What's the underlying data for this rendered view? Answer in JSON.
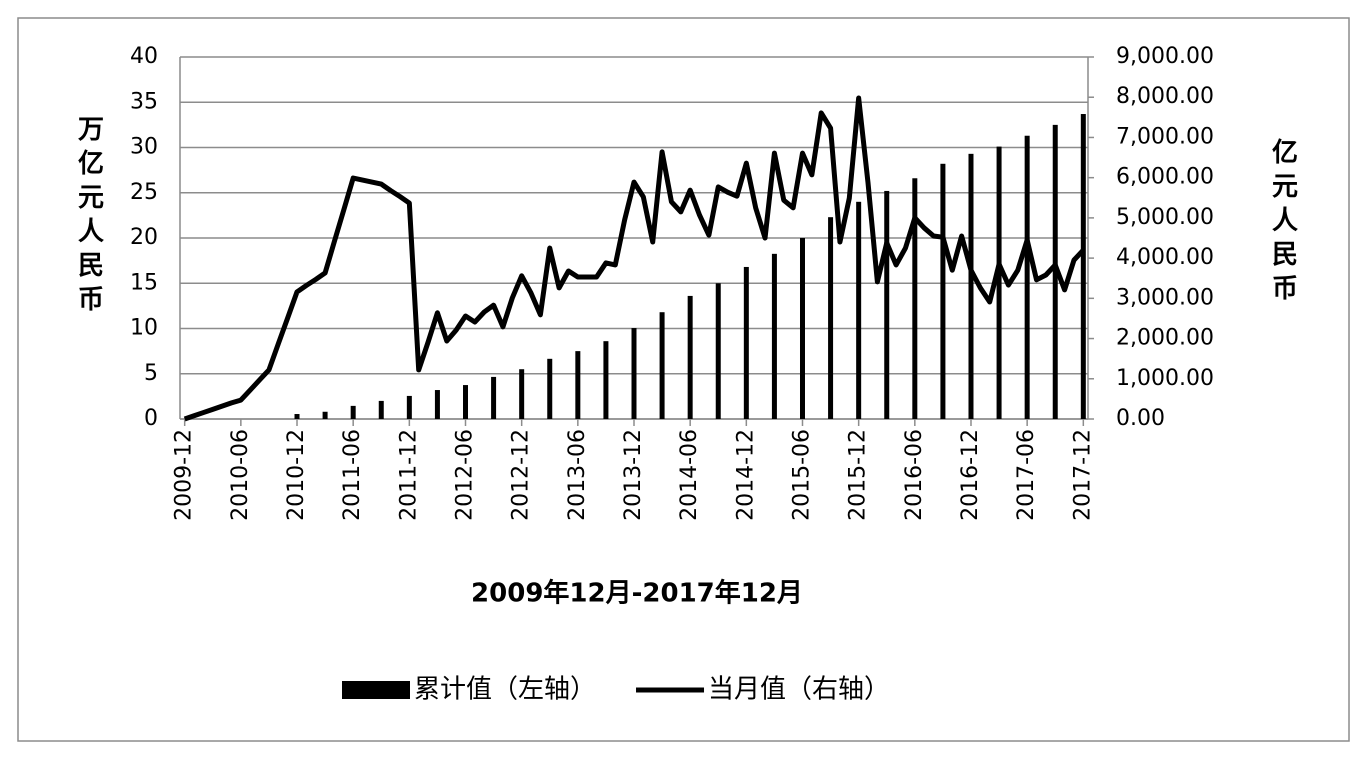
{
  "chart_data": {
    "type": "bar-line",
    "xlabel": "2009年12月-2017年12月",
    "ylabel": "万亿元人民币",
    "y2label": "亿元人民币",
    "categories": [
      "2009-12",
      null,
      null,
      null,
      null,
      null,
      "2010-06",
      null,
      null,
      null,
      null,
      null,
      "2010-12",
      null,
      null,
      null,
      null,
      null,
      "2011-06",
      null,
      null,
      null,
      null,
      null,
      "2011-12",
      null,
      null,
      null,
      null,
      null,
      "2012-06",
      null,
      null,
      null,
      null,
      null,
      "2012-12",
      null,
      null,
      null,
      null,
      null,
      "2013-06",
      null,
      null,
      null,
      null,
      null,
      "2013-12",
      null,
      null,
      null,
      null,
      null,
      "2014-06",
      null,
      null,
      null,
      null,
      null,
      "2014-12",
      null,
      null,
      null,
      null,
      null,
      "2015-06",
      null,
      null,
      null,
      null,
      null,
      "2015-12",
      null,
      null,
      null,
      null,
      null,
      "2016-06",
      null,
      null,
      null,
      null,
      null,
      "2016-12",
      null,
      null,
      null,
      null,
      null,
      "2017-06",
      null,
      null,
      null,
      null,
      null,
      "2017-12"
    ],
    "series": [
      {
        "name": "累计值（左轴）",
        "type": "bar",
        "color": "#000000",
        "values": [
          null,
          null,
          null,
          null,
          null,
          null,
          null,
          null,
          null,
          null,
          null,
          null,
          0.55,
          null,
          null,
          0.8,
          null,
          null,
          1.45,
          null,
          null,
          2.0,
          null,
          null,
          2.55,
          null,
          null,
          3.2,
          null,
          null,
          3.75,
          null,
          null,
          4.65,
          null,
          null,
          5.5,
          null,
          null,
          6.65,
          null,
          null,
          7.5,
          null,
          null,
          8.6,
          null,
          null,
          10.05,
          null,
          null,
          11.8,
          null,
          null,
          13.6,
          null,
          null,
          15.0,
          null,
          null,
          16.8,
          null,
          null,
          18.25,
          null,
          null,
          20.0,
          null,
          null,
          22.3,
          null,
          null,
          24.0,
          null,
          null,
          25.2,
          null,
          null,
          26.6,
          null,
          null,
          28.2,
          null,
          null,
          29.3,
          null,
          null,
          30.1,
          null,
          null,
          31.3,
          null,
          null,
          32.5,
          null,
          null,
          33.7
        ]
      },
      {
        "name": "当月值（右轴）",
        "type": "line",
        "axis": "y2",
        "color": "#000000",
        "values": [
          0,
          80,
          160,
          240,
          320,
          400,
          470,
          720,
          970,
          1220,
          1870,
          2510,
          3160,
          3320,
          3470,
          3630,
          4420,
          5200,
          5990,
          5940,
          5890,
          5840,
          5680,
          5530,
          5370,
          1220,
          1910,
          2640,
          1940,
          2210,
          2560,
          2410,
          2660,
          2830,
          2290,
          3010,
          3560,
          3130,
          2590,
          4250,
          3260,
          3680,
          3530,
          3530,
          3530,
          3880,
          3830,
          4950,
          5890,
          5520,
          4400,
          6640,
          5400,
          5150,
          5690,
          5070,
          4570,
          5770,
          5640,
          5540,
          6360,
          5250,
          4500,
          6610,
          5440,
          5250,
          6610,
          6070,
          7610,
          7230,
          4400,
          5490,
          7980,
          5870,
          3410,
          4380,
          3830,
          4250,
          5000,
          4750,
          4550,
          4520,
          3700,
          4550,
          3700,
          3260,
          2910,
          3850,
          3330,
          3700,
          4450,
          3460,
          3580,
          3830,
          3210,
          3950,
          4200
        ]
      }
    ],
    "ylim": [
      0,
      40
    ],
    "yticks": [
      0,
      5,
      10,
      15,
      20,
      25,
      30,
      35,
      40
    ],
    "y2lim": [
      0,
      9000
    ],
    "y2ticks": [
      {
        "value": 0,
        "label": "0.00"
      },
      {
        "value": 1000,
        "label": "1,000.00"
      },
      {
        "value": 2000,
        "label": "2,000.00"
      },
      {
        "value": 3000,
        "label": "3,000.00"
      },
      {
        "value": 4000,
        "label": "4,000.00"
      },
      {
        "value": 5000,
        "label": "5,000.00"
      },
      {
        "value": 6000,
        "label": "6,000.00"
      },
      {
        "value": 7000,
        "label": "7,000.00"
      },
      {
        "value": 8000,
        "label": "8,000.00"
      },
      {
        "value": 9000,
        "label": "9,000.00"
      }
    ],
    "grid": true,
    "legend": "bottom"
  }
}
